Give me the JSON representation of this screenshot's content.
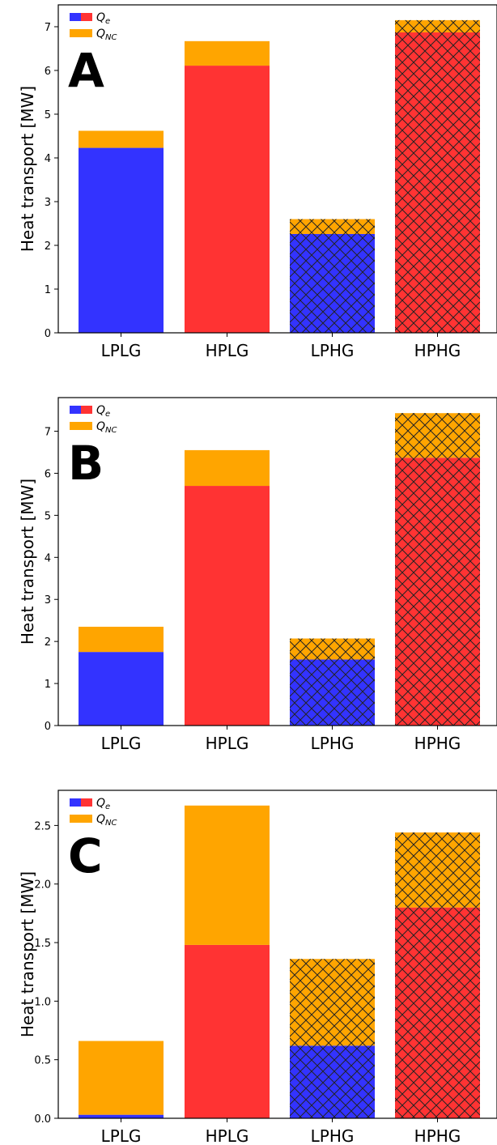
{
  "colors": {
    "qe_low": "#3333ff",
    "qe_high": "#ff3333",
    "qnc": "#ffa500",
    "hatch": "#222222"
  },
  "legend": {
    "qe": {
      "main": "Q",
      "sub": "e"
    },
    "qnc": {
      "main": "Q",
      "sub": "NC"
    }
  },
  "chart_data": [
    {
      "panel": "A",
      "type": "bar",
      "stacked": true,
      "ylabel": "Heat transport [MW]",
      "ylim": [
        0,
        7.5
      ],
      "yticks": [
        0,
        1,
        2,
        3,
        4,
        5,
        6,
        7
      ],
      "ytick_labels": [
        "0",
        "1",
        "2",
        "3",
        "4",
        "5",
        "6",
        "7"
      ],
      "legend_position": "top-left",
      "categories": [
        "LPLG",
        "HPLG",
        "LPHG",
        "HPHG"
      ],
      "hatched": [
        false,
        false,
        true,
        true
      ],
      "series": [
        {
          "key": "qe",
          "values": [
            4.23,
            6.11,
            2.26,
            6.87
          ]
        },
        {
          "key": "qnc",
          "values": [
            0.39,
            0.56,
            0.34,
            0.28
          ]
        }
      ]
    },
    {
      "panel": "B",
      "type": "bar",
      "stacked": true,
      "ylabel": "Heat transport [MW]",
      "ylim": [
        0,
        7.8
      ],
      "yticks": [
        0,
        1,
        2,
        3,
        4,
        5,
        6,
        7
      ],
      "ytick_labels": [
        "0",
        "1",
        "2",
        "3",
        "4",
        "5",
        "6",
        "7"
      ],
      "legend_position": "top-left",
      "categories": [
        "LPLG",
        "HPLG",
        "LPHG",
        "HPHG"
      ],
      "hatched": [
        false,
        false,
        true,
        true
      ],
      "series": [
        {
          "key": "qe",
          "values": [
            1.75,
            5.7,
            1.57,
            6.37
          ]
        },
        {
          "key": "qnc",
          "values": [
            0.6,
            0.85,
            0.5,
            1.06
          ]
        }
      ]
    },
    {
      "panel": "C",
      "type": "bar",
      "stacked": true,
      "ylabel": "Heat transport [MW]",
      "ylim": [
        0,
        2.8
      ],
      "yticks": [
        0,
        0.5,
        1,
        1.5,
        2,
        2.5
      ],
      "ytick_labels": [
        "0.0",
        "0.5",
        "1.0",
        "1.5",
        "2.0",
        "2.5"
      ],
      "legend_position": "top-left",
      "categories": [
        "LPLG",
        "HPLG",
        "LPHG",
        "HPHG"
      ],
      "hatched": [
        false,
        false,
        true,
        true
      ],
      "series": [
        {
          "key": "qe",
          "values": [
            0.03,
            1.48,
            0.62,
            1.8
          ]
        },
        {
          "key": "qnc",
          "values": [
            0.63,
            1.19,
            0.74,
            0.64
          ]
        }
      ]
    }
  ]
}
